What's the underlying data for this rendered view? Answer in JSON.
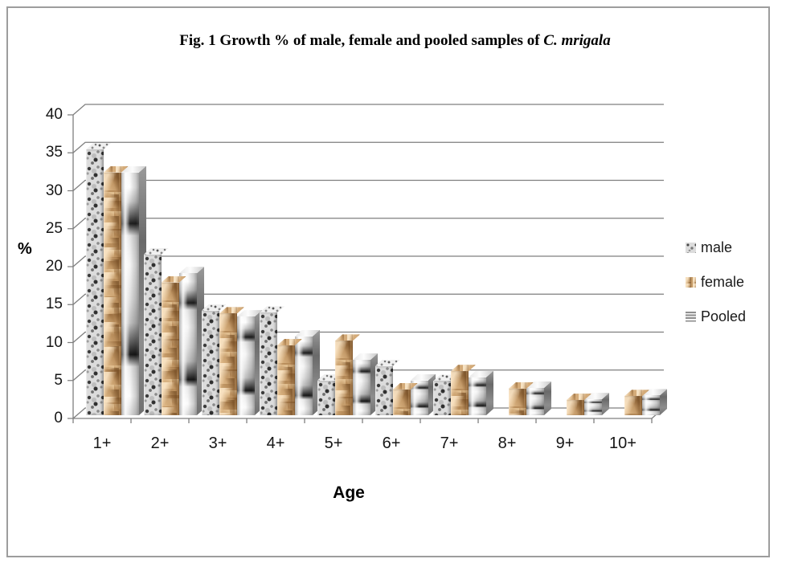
{
  "title": {
    "prefix": "Fig. 1 Growth % of male, female and pooled samples of ",
    "species": "C. mrigala"
  },
  "axes": {
    "y_label": "%",
    "x_label": "Age"
  },
  "chart_data": {
    "type": "bar",
    "style": "3d-clustered",
    "title": "Fig. 1 Growth % of male, female and pooled samples of C. mrigala",
    "categories": [
      "1+",
      "2+",
      "3+",
      "4+",
      "5+",
      "6+",
      "7+",
      "8+",
      "9+",
      "10+"
    ],
    "series": [
      {
        "name": "male",
        "texture": "speckled-gray",
        "base_color": "#c9c9c9",
        "values": [
          35.0,
          21.2,
          13.8,
          13.5,
          4.6,
          6.5,
          4.5,
          0,
          0,
          0
        ]
      },
      {
        "name": "female",
        "texture": "crumpled-tan",
        "base_color": "#b98e5c",
        "values": [
          32.0,
          17.5,
          13.4,
          9.2,
          9.8,
          3.4,
          5.8,
          3.5,
          2.0,
          2.5
        ]
      },
      {
        "name": "Pooled",
        "texture": "banded-metal-gray",
        "base_color": "#d9d9d9",
        "values": [
          32.0,
          18.7,
          13.0,
          10.4,
          7.3,
          4.6,
          5.0,
          3.6,
          2.1,
          2.6
        ]
      }
    ],
    "xlabel": "Age",
    "ylabel": "%",
    "yticks": [
      0,
      5,
      10,
      15,
      20,
      25,
      30,
      35,
      40
    ],
    "ylim": [
      0,
      40
    ],
    "grid": true,
    "legend_position": "right",
    "gridline_color": "#7f7f7f",
    "page_border_color": "#9d9d9d"
  },
  "legend_note": "legend labels bound from chart_data.series names"
}
